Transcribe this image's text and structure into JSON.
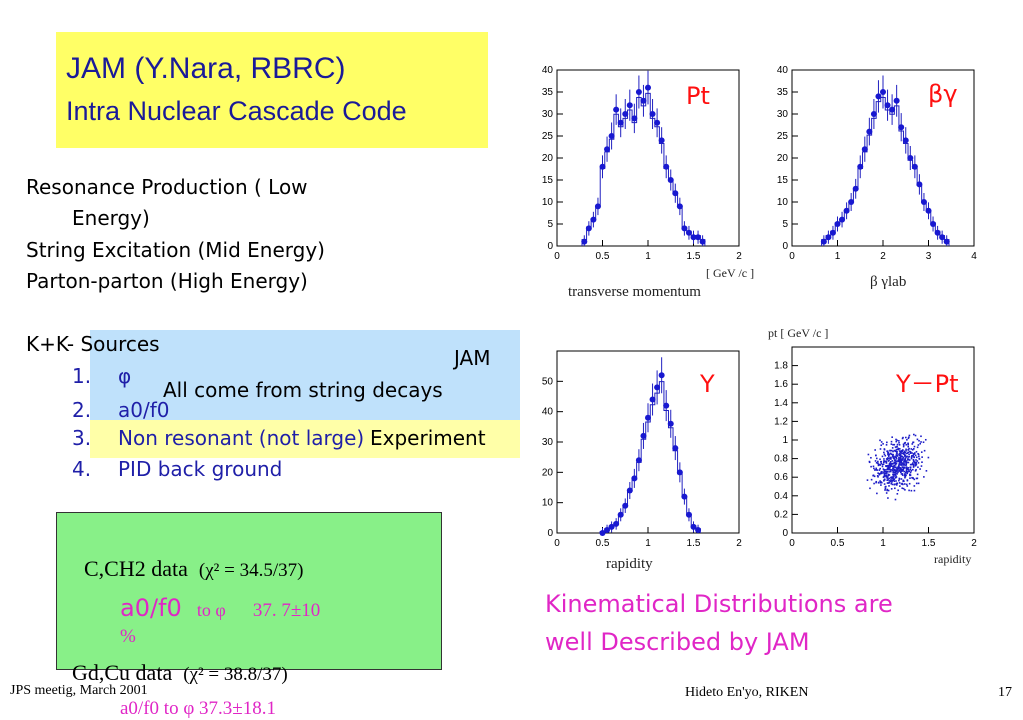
{
  "title": {
    "line1": "JAM (Y.Nara, RBRC)",
    "line2": "Intra Nuclear Cascade Code"
  },
  "production": {
    "line1": "Resonance Production ( Low",
    "line1b": "Energy)",
    "line2": "String Excitation (Mid Energy)",
    "line3": "Parton-parton (High Energy)"
  },
  "sources": {
    "heading": "K+K- Sources",
    "items": [
      {
        "num": "1.",
        "text": "φ"
      },
      {
        "num": "2.",
        "text": "a0/f0"
      },
      {
        "num": "3.",
        "text": "Non resonant (not large)"
      },
      {
        "num": "4.",
        "text": "PID back ground"
      }
    ]
  },
  "overlay": {
    "jam": "JAM",
    "string_decays": "All come from string decays",
    "experiment": "Experiment"
  },
  "fit": {
    "line1_label": "C,CH2 data",
    "line1_chi": "(χ² = 34.5/37)",
    "line2_a": "a0/f0",
    "line2_to": "to φ",
    "line2_val": "37. 7±10",
    "line2_pct": "%",
    "line3_label": "Gd,Cu data",
    "line3_chi": "(χ² = 38.8/37)",
    "line4_partial": "a0/f0   to φ    37.3±18.1"
  },
  "plots": {
    "pt_label": "Pt",
    "bg_label": "βγ",
    "y_label": "Y",
    "ypt_label": "Y－Pt",
    "pt_unit": "[ GeV /c ]",
    "pt_caption": "transverse momentum",
    "bg_caption": "β γlab",
    "y_caption": "rapidity",
    "ypt_axis_title": "pt  [ GeV /c ]",
    "ypt_caption": "rapidity"
  },
  "kinematics": {
    "line1": "Kinematical Distributions are",
    "line2": "well Described  by JAM"
  },
  "footer": {
    "left": "JPS meetig, March 2001",
    "center": "Hideto En'yo, RIKEN",
    "page": "17"
  },
  "chart_data": [
    {
      "type": "scatter",
      "series_name": "Pt",
      "xlabel": "transverse momentum",
      "xlim": [
        0,
        2
      ],
      "ylim": [
        0,
        40
      ],
      "x": [
        0.3,
        0.35,
        0.4,
        0.45,
        0.5,
        0.55,
        0.6,
        0.65,
        0.7,
        0.75,
        0.8,
        0.85,
        0.9,
        0.95,
        1.0,
        1.05,
        1.1,
        1.15,
        1.2,
        1.25,
        1.3,
        1.35,
        1.4,
        1.45,
        1.5,
        1.55,
        1.6
      ],
      "y": [
        1,
        4,
        6,
        9,
        18,
        22,
        25,
        31,
        28,
        30,
        32,
        29,
        35,
        33,
        36,
        30,
        28,
        24,
        18,
        15,
        12,
        9,
        4,
        3,
        2,
        2,
        1
      ]
    },
    {
      "type": "scatter",
      "series_name": "βγ",
      "xlabel": "β γlab",
      "xlim": [
        0,
        4
      ],
      "ylim": [
        0,
        40
      ],
      "x": [
        0.7,
        0.8,
        0.9,
        1.0,
        1.1,
        1.2,
        1.3,
        1.4,
        1.5,
        1.6,
        1.7,
        1.8,
        1.9,
        2.0,
        2.1,
        2.2,
        2.3,
        2.4,
        2.5,
        2.6,
        2.7,
        2.8,
        2.9,
        3.0,
        3.1,
        3.2,
        3.3,
        3.4
      ],
      "y": [
        1,
        2,
        3,
        5,
        6,
        8,
        10,
        13,
        18,
        22,
        26,
        30,
        34,
        35,
        32,
        31,
        33,
        27,
        24,
        20,
        18,
        14,
        10,
        8,
        5,
        3,
        2,
        1
      ]
    },
    {
      "type": "scatter",
      "series_name": "Y",
      "xlabel": "rapidity",
      "xlim": [
        0,
        2
      ],
      "ylim": [
        0,
        60
      ],
      "x": [
        0.5,
        0.55,
        0.6,
        0.65,
        0.7,
        0.75,
        0.8,
        0.85,
        0.9,
        0.95,
        1.0,
        1.05,
        1.1,
        1.15,
        1.2,
        1.25,
        1.3,
        1.35,
        1.4,
        1.45,
        1.5,
        1.55
      ],
      "y": [
        0,
        1,
        2,
        3,
        6,
        9,
        14,
        18,
        24,
        32,
        38,
        44,
        48,
        52,
        42,
        36,
        28,
        20,
        12,
        6,
        2,
        1
      ]
    },
    {
      "type": "scatter",
      "series_name": "Y－Pt",
      "xlabel": "rapidity",
      "ylabel": "pt [ GeV /c ]",
      "xlim": [
        0,
        2
      ],
      "ylim": [
        0,
        2
      ],
      "note_points": "dense cloud of points between rapidity 0.8-1.6 and pt 0.3-1.3"
    }
  ]
}
